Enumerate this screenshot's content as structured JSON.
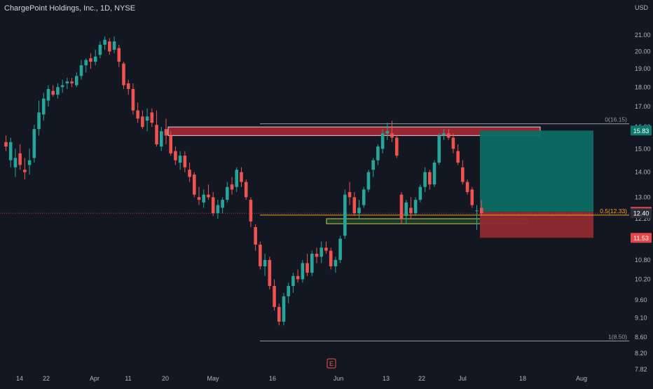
{
  "header": {
    "title": "ChargePoint Holdings, Inc., 1D, NYSE",
    "currency": "USD"
  },
  "colors": {
    "background": "#131722",
    "up": "#26a69a",
    "down": "#ef5350",
    "axis_text": "#b2b5be",
    "grid": "#1e222d",
    "orange": "#f7a21b",
    "fib_line": "#9598a1",
    "supply_zone": "#b22833",
    "demand_zone": "#2e7d32",
    "target_zone": "#0b6b63",
    "stop_zone": "#8f2a30"
  },
  "chart_data": {
    "type": "candlestick",
    "title": "ChargePoint Holdings, Inc., 1D, NYSE",
    "ylabel": "USD",
    "y_scale": "log",
    "ylim": [
      7.8,
      21.3
    ],
    "y_ticks": [
      "7.82",
      "8.20",
      "8.60",
      "9.10",
      "9.60",
      "10.20",
      "10.80",
      "11.50",
      "12.20",
      "13.00",
      "14.00",
      "15.00",
      "16.00",
      "17.00",
      "18.00",
      "19.00",
      "20.00",
      "21.00"
    ],
    "x_ticks": [
      "14",
      "22",
      "Apr",
      "11",
      "20",
      "May",
      "16",
      "Jun",
      "13",
      "22",
      "Jul",
      "18",
      "Aug"
    ],
    "ohlc": [
      [
        15.3,
        15.6,
        14.9,
        15.1
      ],
      [
        14.5,
        15.5,
        14.2,
        15.3
      ],
      [
        14.2,
        15.0,
        13.8,
        14.6
      ],
      [
        14.8,
        15.2,
        14.1,
        14.3
      ],
      [
        14.1,
        14.6,
        13.7,
        14.0
      ],
      [
        14.3,
        15.0,
        13.9,
        14.5
      ],
      [
        14.6,
        16.1,
        14.4,
        15.9
      ],
      [
        15.9,
        17.3,
        15.6,
        16.7
      ],
      [
        16.6,
        17.7,
        16.3,
        17.4
      ],
      [
        17.3,
        18.1,
        17.0,
        17.9
      ],
      [
        17.8,
        18.1,
        17.5,
        17.6
      ],
      [
        17.6,
        18.2,
        17.4,
        18.0
      ],
      [
        18.0,
        18.4,
        17.7,
        18.1
      ],
      [
        18.2,
        18.5,
        17.9,
        18.3
      ],
      [
        18.3,
        18.5,
        18.0,
        18.2
      ],
      [
        18.1,
        18.8,
        18.0,
        18.6
      ],
      [
        18.6,
        19.5,
        18.4,
        19.2
      ],
      [
        19.2,
        19.6,
        18.8,
        19.5
      ],
      [
        19.6,
        19.9,
        19.0,
        19.4
      ],
      [
        19.4,
        20.1,
        19.2,
        19.7
      ],
      [
        19.8,
        20.6,
        19.6,
        20.4
      ],
      [
        20.4,
        20.9,
        20.1,
        20.7
      ],
      [
        20.6,
        20.8,
        19.8,
        20.0
      ],
      [
        20.1,
        20.9,
        19.9,
        20.6
      ],
      [
        20.2,
        20.4,
        19.1,
        19.4
      ],
      [
        19.3,
        19.4,
        17.9,
        18.1
      ],
      [
        18.2,
        18.4,
        17.6,
        17.9
      ],
      [
        17.9,
        18.2,
        16.6,
        16.8
      ],
      [
        16.8,
        17.2,
        16.2,
        16.4
      ],
      [
        16.5,
        16.8,
        15.9,
        16.0
      ],
      [
        16.3,
        16.9,
        15.8,
        16.5
      ],
      [
        16.7,
        16.9,
        16.0,
        16.2
      ],
      [
        16.1,
        16.8,
        15.1,
        15.2
      ],
      [
        15.1,
        16.0,
        14.9,
        15.8
      ],
      [
        15.9,
        16.4,
        15.2,
        15.6
      ],
      [
        15.6,
        15.8,
        14.7,
        14.8
      ],
      [
        14.9,
        15.1,
        14.3,
        14.5
      ],
      [
        14.4,
        14.9,
        14.1,
        14.7
      ],
      [
        14.7,
        14.9,
        14.0,
        14.2
      ],
      [
        14.1,
        14.4,
        13.6,
        13.8
      ],
      [
        13.9,
        14.0,
        13.0,
        13.1
      ],
      [
        13.0,
        13.4,
        12.7,
        12.9
      ],
      [
        12.8,
        13.3,
        12.6,
        13.1
      ],
      [
        13.1,
        13.5,
        12.9,
        13.0
      ],
      [
        13.0,
        13.2,
        12.3,
        12.4
      ],
      [
        12.4,
        12.9,
        12.2,
        12.7
      ],
      [
        12.6,
        13.0,
        12.4,
        12.9
      ],
      [
        12.9,
        13.6,
        12.8,
        13.4
      ],
      [
        13.5,
        13.8,
        13.1,
        13.3
      ],
      [
        13.4,
        14.2,
        13.2,
        14.1
      ],
      [
        14.0,
        14.2,
        13.4,
        13.6
      ],
      [
        13.6,
        13.7,
        12.9,
        13.0
      ],
      [
        12.9,
        13.0,
        11.9,
        12.1
      ],
      [
        11.9,
        12.0,
        11.1,
        11.3
      ],
      [
        11.3,
        11.4,
        10.5,
        10.6
      ],
      [
        10.6,
        11.0,
        10.3,
        10.8
      ],
      [
        10.8,
        10.9,
        9.9,
        10.0
      ],
      [
        10.0,
        10.2,
        9.3,
        9.4
      ],
      [
        9.4,
        9.5,
        8.9,
        9.0
      ],
      [
        9.0,
        9.8,
        8.9,
        9.7
      ],
      [
        9.7,
        10.1,
        9.5,
        10.0
      ],
      [
        10.0,
        10.4,
        9.8,
        10.3
      ],
      [
        10.3,
        10.5,
        10.1,
        10.2
      ],
      [
        10.2,
        10.8,
        10.1,
        10.7
      ],
      [
        10.7,
        11.0,
        10.3,
        10.4
      ],
      [
        10.4,
        11.1,
        10.3,
        11.0
      ],
      [
        11.0,
        11.2,
        10.7,
        10.9
      ],
      [
        10.9,
        11.4,
        10.7,
        11.2
      ],
      [
        11.2,
        11.4,
        11.0,
        11.1
      ],
      [
        11.1,
        11.2,
        10.5,
        10.6
      ],
      [
        10.6,
        10.9,
        10.4,
        10.8
      ],
      [
        10.8,
        11.6,
        10.7,
        11.5
      ],
      [
        11.6,
        13.3,
        11.5,
        13.1
      ],
      [
        13.2,
        13.6,
        12.7,
        13.0
      ],
      [
        13.0,
        13.2,
        12.3,
        12.4
      ],
      [
        12.4,
        12.9,
        12.2,
        12.6
      ],
      [
        12.7,
        13.4,
        12.6,
        13.3
      ],
      [
        13.3,
        14.1,
        13.2,
        14.0
      ],
      [
        14.1,
        14.6,
        13.8,
        14.5
      ],
      [
        14.5,
        15.2,
        14.3,
        15.1
      ],
      [
        15.0,
        15.9,
        14.8,
        15.7
      ],
      [
        15.7,
        16.2,
        15.4,
        15.8
      ],
      [
        15.7,
        16.3,
        15.3,
        15.5
      ],
      [
        15.5,
        15.6,
        14.6,
        14.7
      ],
      [
        13.1,
        13.2,
        12.0,
        12.2
      ],
      [
        12.3,
        12.9,
        12.0,
        12.8
      ],
      [
        12.6,
        13.0,
        12.2,
        12.4
      ],
      [
        12.4,
        13.0,
        12.3,
        12.9
      ],
      [
        12.9,
        13.5,
        12.8,
        13.4
      ],
      [
        13.4,
        14.2,
        13.2,
        14.0
      ],
      [
        14.0,
        14.1,
        13.3,
        13.5
      ],
      [
        13.5,
        14.5,
        13.4,
        14.4
      ],
      [
        14.4,
        15.7,
        14.3,
        15.6
      ],
      [
        15.6,
        15.9,
        15.4,
        15.7
      ],
      [
        15.7,
        15.9,
        15.4,
        15.5
      ],
      [
        15.5,
        15.7,
        14.8,
        15.0
      ],
      [
        14.9,
        15.2,
        14.3,
        14.4
      ],
      [
        14.2,
        14.5,
        13.5,
        13.6
      ],
      [
        13.6,
        13.7,
        13.1,
        13.2
      ],
      [
        13.3,
        13.4,
        12.6,
        12.7
      ],
      [
        12.5,
        12.7,
        11.8,
        12.5
      ],
      [
        12.6,
        12.9,
        12.3,
        12.4
      ]
    ],
    "horizontal_levels": [
      {
        "label": "0(16.15)",
        "value": 16.15
      },
      {
        "label": "0.5(12.33)",
        "value": 12.33
      },
      {
        "label": "1(8.50)",
        "value": 8.5
      }
    ],
    "zones": [
      {
        "name": "supply",
        "top": 16.0,
        "bottom": 15.6
      },
      {
        "name": "demand",
        "top": 12.2,
        "bottom": 12.02
      },
      {
        "name": "target",
        "top": 15.83,
        "bottom": 12.45
      },
      {
        "name": "stop",
        "top": 12.45,
        "bottom": 11.53
      }
    ],
    "price_labels": [
      {
        "value": 15.83,
        "text": "15.83",
        "kind": "target"
      },
      {
        "value": 12.45,
        "text": "12.45",
        "kind": "entry"
      },
      {
        "value": 12.4,
        "text": "12.40",
        "kind": "current"
      },
      {
        "value": 11.53,
        "text": "11.53",
        "kind": "stop"
      }
    ],
    "earnings_marker": "E",
    "grid": false,
    "legend": "none"
  }
}
